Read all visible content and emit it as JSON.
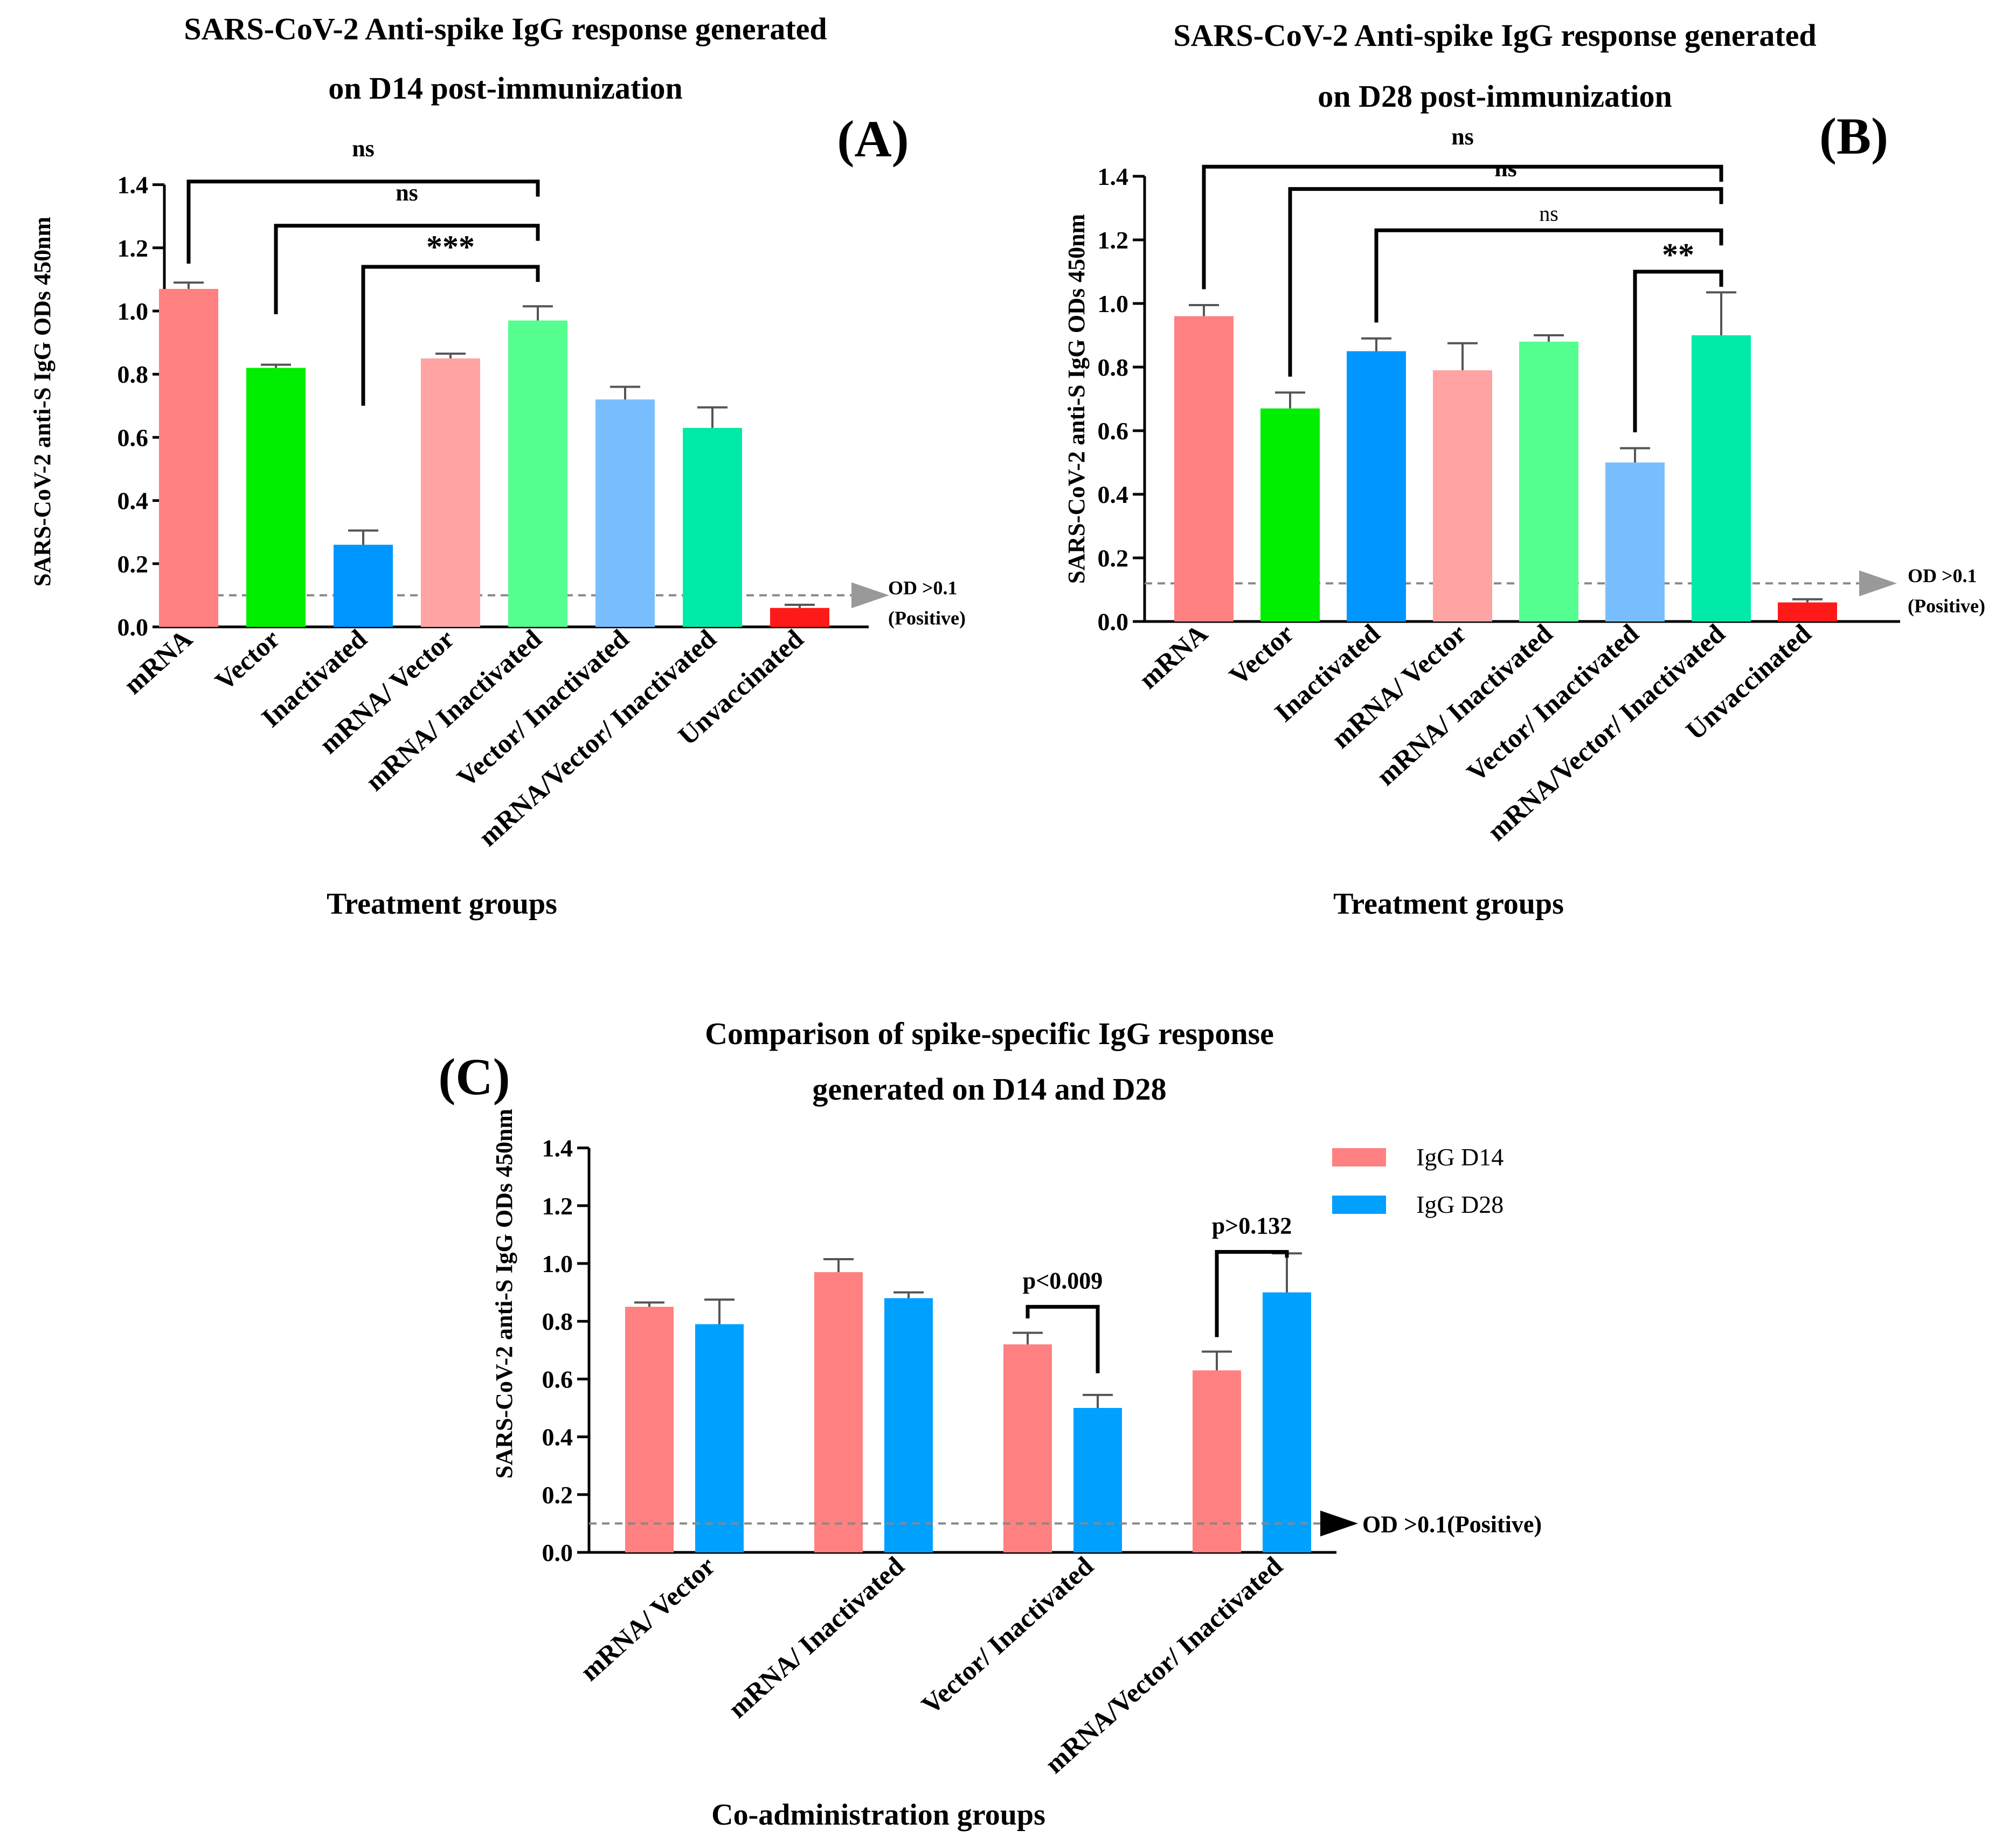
{
  "chart_data": [
    {
      "panel": "(A)",
      "type": "bar",
      "title": [
        "SARS-CoV-2 Anti-spike IgG response generated",
        "on D14 post-immunization"
      ],
      "xlabel": "Treatment groups",
      "ylabel": "SARS-CoV-2 anti-S IgG ODs 450nm",
      "ylim": [
        0,
        1.4
      ],
      "yticks": [
        "0.0",
        "0.2",
        "0.4",
        "0.6",
        "0.8",
        "1.0",
        "1.2",
        "1.4"
      ],
      "categories": [
        "mRNA",
        "Vector",
        "Inactivated",
        "mRNA/ Vector",
        "mRNA/ Inactivated",
        "Vector/ Inactivated",
        "mRNA/Vector/ Inactivated",
        "Unvaccinated"
      ],
      "values": [
        1.07,
        0.82,
        0.26,
        0.85,
        0.97,
        0.72,
        0.63,
        0.06
      ],
      "errors": [
        0.02,
        0.01,
        0.045,
        0.015,
        0.045,
        0.04,
        0.065,
        0.01
      ],
      "colors": [
        "#ff8080",
        "#00ee00",
        "#0096ff",
        "#ffa3a3",
        "#55ff8f",
        "#78beff",
        "#00eaa8",
        "#ff1a1a"
      ],
      "reference_line": {
        "y": 0.1,
        "label": [
          "OD >0.1",
          "(Positive)"
        ]
      },
      "comparisons": [
        {
          "from": 0,
          "to": 4,
          "label": "ns"
        },
        {
          "from": 1,
          "to": 4,
          "label": "ns"
        },
        {
          "from": 2,
          "to": 4,
          "label": "***"
        }
      ]
    },
    {
      "panel": "(B)",
      "type": "bar",
      "title": [
        "SARS-CoV-2 Anti-spike IgG response generated",
        "on D28 post-immunization"
      ],
      "xlabel": "Treatment groups",
      "ylabel": "SARS-CoV-2 anti-S IgG ODs 450nm",
      "ylim": [
        0,
        1.4
      ],
      "yticks": [
        "0.0",
        "0.2",
        "0.4",
        "0.6",
        "0.8",
        "1.0",
        "1.2",
        "1.4"
      ],
      "categories": [
        "mRNA",
        "Vector",
        "Inactivated",
        "mRNA/ Vector",
        "mRNA/ Inactivated",
        "Vector/ Inactivated",
        "mRNA/Vector/ Inactivated",
        "Unvaccinated"
      ],
      "values": [
        0.96,
        0.67,
        0.85,
        0.79,
        0.88,
        0.5,
        0.9,
        0.06
      ],
      "errors": [
        0.035,
        0.05,
        0.04,
        0.085,
        0.02,
        0.045,
        0.135,
        0.01
      ],
      "colors": [
        "#ff8080",
        "#00ee00",
        "#0096ff",
        "#ffa3a3",
        "#55ff8f",
        "#78beff",
        "#00eaa8",
        "#ff1a1a"
      ],
      "reference_line": {
        "y": 0.12,
        "label": [
          "OD >0.1",
          "(Positive)"
        ]
      },
      "comparisons": [
        {
          "from": 0,
          "to": 6,
          "label": "ns"
        },
        {
          "from": 1,
          "to": 6,
          "label": "ns"
        },
        {
          "from": 2,
          "to": 6,
          "label": "ns"
        },
        {
          "from": 5,
          "to": 6,
          "label": "**"
        }
      ]
    },
    {
      "panel": "(C)",
      "type": "bar",
      "title": [
        "Comparison of spike-specific IgG response",
        "generated on D14 and D28"
      ],
      "xlabel": "Co-administration groups",
      "ylabel": "SARS-CoV-2 anti-S IgG ODs 450nm",
      "ylim": [
        0,
        1.4
      ],
      "yticks": [
        "0.0",
        "0.2",
        "0.4",
        "0.6",
        "0.8",
        "1.0",
        "1.2",
        "1.4"
      ],
      "categories": [
        "mRNA/ Vector",
        "mRNA/ Inactivated",
        "Vector/ Inactivated",
        "mRNA/Vector/ Inactivated"
      ],
      "series": [
        {
          "name": "IgG D14",
          "color": "#ff8080",
          "values": [
            0.85,
            0.97,
            0.72,
            0.63
          ],
          "errors": [
            0.015,
            0.045,
            0.04,
            0.065
          ]
        },
        {
          "name": "IgG D28",
          "color": "#00a0ff",
          "values": [
            0.79,
            0.88,
            0.5,
            0.9
          ],
          "errors": [
            0.085,
            0.02,
            0.045,
            0.135
          ]
        }
      ],
      "reference_line": {
        "y": 0.1,
        "label": [
          "OD >0.1(Positive)"
        ]
      },
      "comparisons": [
        {
          "group": 2,
          "label": "p<0.009"
        },
        {
          "group": 3,
          "label": "p>0.132"
        }
      ]
    }
  ]
}
